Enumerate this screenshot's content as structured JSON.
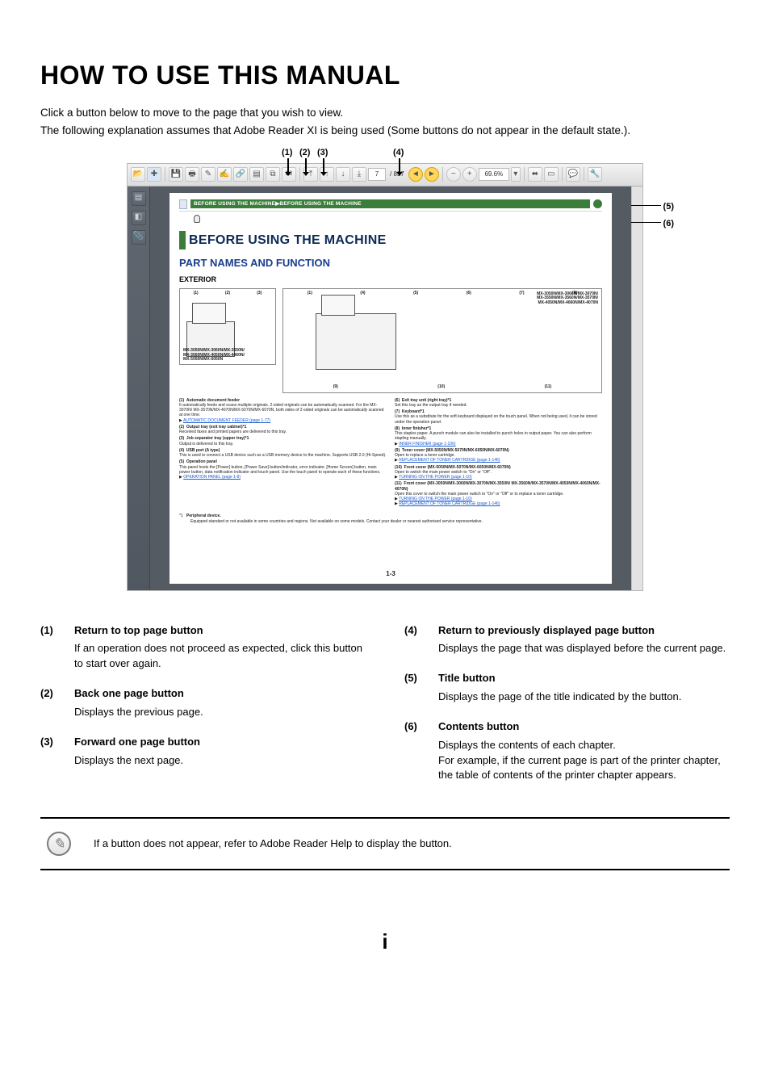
{
  "title": "HOW TO USE THIS MANUAL",
  "intro": [
    "Click a button below to move to the page that you wish to view.",
    "The following explanation assumes that Adobe Reader XI is being used (Some buttons do not appear in the default state.)."
  ],
  "top_callouts": {
    "c1": "(1)",
    "c2": "(2)",
    "c3": "(3)",
    "c4": "(4)"
  },
  "side_callouts": {
    "c5": "(5)",
    "c6": "(6)"
  },
  "reader": {
    "toolbar": {
      "page_field": "7",
      "page_total": "/ 837",
      "zoom": "69.6%"
    },
    "breadcrumb_text": "BEFORE USING THE MACHINE▶BEFORE USING THE MACHINE",
    "doc": {
      "h1": "BEFORE USING THE MACHINE",
      "h2": "PART NAMES AND FUNCTION",
      "h3": "EXTERIOR",
      "label_left": "MX-3050N/MX-3060N/MX-3550N/\nMX-3560N/MX-4050N/MX-4060N/\nMX-5050N/MX-6050N",
      "label_right": "MX-3050N/MX-3060N/MX-3070N/\nMX-3550N/MX-3560N/MX-3570N/\nMX-4050N/MX-4060N/MX-4070N",
      "col1": [
        {
          "n": "(1)",
          "t": "Automatic document feeder",
          "d": "It automatically feeds and scans multiple originals. 2-sided originals can be automatically scanned. For the MX-3070N/ MX-3570N/MX-4070N/MX-5070N/MX-6070N, both sides of 2-sided originals can be automatically scanned at one time.",
          "l": "AUTOMATIC DOCUMENT FEEDER (page 1-77)"
        },
        {
          "n": "(2)",
          "t": "Output tray (exit tray cabinet)*1",
          "d": "Received faxes and printed papers are delivered to this tray."
        },
        {
          "n": "(3)",
          "t": "Job separator tray (upper tray)*1",
          "d": "Output is delivered to this tray."
        },
        {
          "n": "(4)",
          "t": "USB port (A type)",
          "d": "This is used to connect a USB device such as a USB memory device to the machine. Supports USB 2.0 (Hi-Speed)."
        },
        {
          "n": "(5)",
          "t": "Operation panel",
          "d": "This panel hosts the [Power] button, [Power Save] button/indicator, error indicator, [Home Screen] button, main power button, data notification indicator and touch panel. Use the touch panel to operate each of these functions.",
          "l": "OPERATION PANEL (page 1-8)"
        }
      ],
      "col2": [
        {
          "n": "(6)",
          "t": "Exit tray unit (right tray)*1",
          "d": "Set this tray as the output tray if needed."
        },
        {
          "n": "(7)",
          "t": "Keyboard*1",
          "d": "Use this as a substitute for the soft keyboard displayed on the touch panel. When not being used, it can be stored under the operation panel."
        },
        {
          "n": "(8)",
          "t": "Inner finisher*1",
          "d": "This staples paper. A punch module can also be installed to punch holes in output paper. You can also perform stapling manually.",
          "l": "INNER FINISHER (page 1-106)"
        },
        {
          "n": "(9)",
          "t": "Toner cover (MX-5050N/MX-5070N/MX-6050N/MX-6070N)",
          "d": "Open to replace a toner cartridge.",
          "l": "REPLACEMENT OF TONER CARTRIDGE (page 1-146)"
        },
        {
          "n": "(10)",
          "t": "Front cover (MX-5050N/MX-5070N/MX-6050N/MX-6070N)",
          "d": "Open to switch the main power switch to \"On\" or \"Off\".",
          "l": "TURNING ON THE POWER (page 1-10)"
        },
        {
          "n": "(11)",
          "t": "Front cover (MX-3050N/MX-3060N/MX-3070N/MX-3550N/ MX-3560N/MX-3570N/MX-4050N/MX-4060N/MX-4070N)",
          "d": "Open this cover to switch the main power switch to \"On\" or \"Off\" or to replace a toner cartridge.",
          "l": "TURNING ON THE POWER (page 1-10)",
          "l2": "REPLACEMENT OF TONER CARTRIDGE (page 1-146)"
        }
      ],
      "footnote_star": "*1",
      "footnote_label": "Peripheral device.",
      "footnote": "Equipped standard or not available in some countries and regions. Not available on some models. Contact your dealer or nearest authorised service representative.",
      "pagenum": "1-3"
    }
  },
  "explanations": {
    "left": [
      {
        "n": "(1)",
        "t": "Return to top page button",
        "d": "If an operation does not proceed as expected, click this button to start over again."
      },
      {
        "n": "(2)",
        "t": "Back one page button",
        "d": "Displays the previous page."
      },
      {
        "n": "(3)",
        "t": "Forward one page button",
        "d": "Displays the next page."
      }
    ],
    "right": [
      {
        "n": "(4)",
        "t": "Return to previously displayed page button",
        "d": "Displays the page that was displayed before the current page."
      },
      {
        "n": "(5)",
        "t": "Title button",
        "d": "Displays the page of the title indicated by the button."
      },
      {
        "n": "(6)",
        "t": "Contents button",
        "d": "Displays the contents of each chapter.\nFor example, if the current page is part of the printer chapter, the table of contents of the printer chapter appears."
      }
    ]
  },
  "note": "If a button does not appear, refer to Adobe Reader Help to display the button.",
  "footer_page": "i",
  "colors": {
    "heading_blue": "#1a3d8f",
    "dark_blue": "#0b2a55",
    "green": "#3b7d3b",
    "link_blue": "#1a5bd0"
  }
}
